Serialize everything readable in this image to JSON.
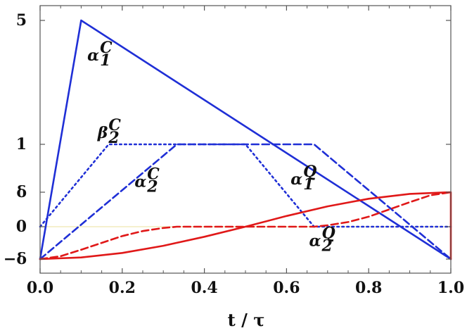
{
  "chart_data": {
    "type": "line",
    "xlabel": "t / τ",
    "ylabel": "",
    "xlim": [
      0,
      1
    ],
    "ylim": [
      -0.45,
      5.05
    ],
    "x_ticks": [
      {
        "value": 0.0,
        "label": "0.0"
      },
      {
        "value": 0.2,
        "label": "0.2"
      },
      {
        "value": 0.4,
        "label": "0.4"
      },
      {
        "value": 0.6,
        "label": "0.6"
      },
      {
        "value": 0.8,
        "label": "0.8"
      },
      {
        "value": 1.0,
        "label": "1.0"
      }
    ],
    "y_ticks": [
      {
        "value": -0.2,
        "label": "−δ"
      },
      {
        "value": 0,
        "label": "0"
      },
      {
        "value": 0.2,
        "label": "δ"
      },
      {
        "value": 1,
        "label": "1"
      },
      {
        "value": 5,
        "label": "5"
      }
    ],
    "y_scale_note": "nonlinear",
    "grid": false,
    "colors": {
      "blue": "#1f2fd6",
      "red": "#e01818",
      "zero_line": "#efe7b0",
      "frame": "#555555"
    },
    "series": [
      {
        "key": "alpha1C",
        "color": "#1f2fd6",
        "dash": "solid",
        "x": [
          0,
          0.1,
          1.0
        ],
        "y": [
          -0.2,
          5,
          -0.2
        ]
      },
      {
        "key": "alpha2C",
        "color": "#1f2fd6",
        "dash": "dashed",
        "x": [
          0,
          0.333,
          0.667,
          1.0
        ],
        "y": [
          -0.2,
          1,
          1,
          -0.2
        ]
      },
      {
        "key": "beta2C",
        "color": "#1f2fd6",
        "dash": "dotted",
        "x": [
          0,
          0.167,
          0.5,
          0.667,
          1.0
        ],
        "y": [
          0,
          1,
          1,
          0,
          0
        ]
      },
      {
        "key": "alpha1Q",
        "color": "#e01818",
        "dash": "solid",
        "x": [
          0,
          0.1,
          0.2,
          0.3,
          0.4,
          0.5,
          0.6,
          0.7,
          0.8,
          0.9,
          1.0,
          1.0
        ],
        "y": [
          -0.2,
          -0.19,
          -0.162,
          -0.118,
          -0.062,
          0,
          0.062,
          0.118,
          0.162,
          0.19,
          0.2,
          -0.2
        ]
      },
      {
        "key": "alpha2Q",
        "color": "#e01818",
        "dash": "dashed",
        "x": [
          0,
          0.05,
          0.1,
          0.15,
          0.2,
          0.25,
          0.3,
          0.333,
          0.4,
          0.5,
          0.6,
          0.667,
          0.7,
          0.75,
          0.8,
          0.85,
          0.9,
          0.95,
          1.0
        ],
        "y": [
          -0.2,
          -0.182,
          -0.142,
          -0.1,
          -0.058,
          -0.027,
          -0.008,
          0,
          0,
          0,
          0,
          0,
          0.008,
          0.027,
          0.058,
          0.1,
          0.142,
          0.182,
          0.2
        ]
      }
    ],
    "annotations": [
      {
        "key": "alpha1C",
        "base": "α",
        "sup": "C",
        "sub": "1",
        "x": 0.115,
        "y": 3.7
      },
      {
        "key": "beta2C",
        "base": "β",
        "sup": "C",
        "sub": "2",
        "x": 0.14,
        "y": 1.2
      },
      {
        "key": "alpha2C",
        "base": "α",
        "sup": "C",
        "sub": "2",
        "x": 0.23,
        "y": 0.29
      },
      {
        "key": "alpha1Q",
        "base": "α",
        "sup": "Q",
        "sub": "1",
        "x": 0.61,
        "y": 0.33
      },
      {
        "key": "alpha2Q",
        "base": "α",
        "sup": "Q",
        "sub": "2",
        "x": 0.655,
        "y": -0.12
      }
    ]
  }
}
